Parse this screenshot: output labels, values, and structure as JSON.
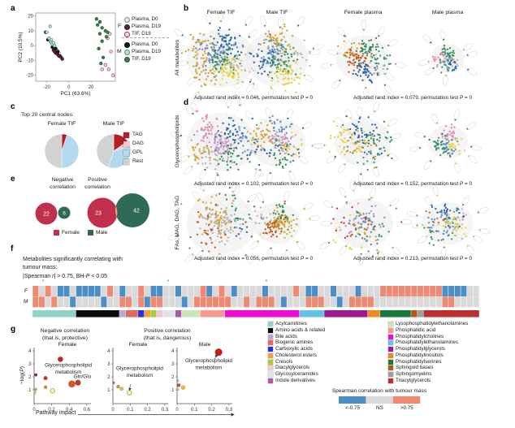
{
  "panel_a": {
    "letter": "a",
    "chart_data": {
      "type": "scatter",
      "xlabel": "PC1 (63.6%)",
      "ylabel": "PC2 (10.5%)",
      "xlim": [
        -30,
        42
      ],
      "ylim": [
        -24,
        22
      ],
      "xticks": [
        -20,
        0,
        20
      ],
      "yticks": [
        20,
        10,
        0,
        -10,
        -20
      ],
      "series": [
        {
          "name": "F Plasma, D0",
          "fill": "#e8e8e8",
          "stroke": "#8a8a8a",
          "points": [
            [
              -13,
              -2
            ],
            [
              -11,
              -3
            ],
            [
              -12,
              -4
            ],
            [
              -9,
              -5
            ],
            [
              -14,
              -1
            ]
          ]
        },
        {
          "name": "F Plasma, D19",
          "fill": "#5a2430",
          "stroke": "#3d1620",
          "points": [
            [
              -14,
              -3
            ],
            [
              -13,
              -4
            ],
            [
              -12,
              -5
            ],
            [
              -11,
              -5
            ],
            [
              -10,
              -6
            ],
            [
              -9,
              -7
            ],
            [
              -8,
              -7
            ],
            [
              -7,
              -8
            ],
            [
              -6,
              -9
            ]
          ]
        },
        {
          "name": "F TIF, D19",
          "fill": "#f3dbe0",
          "stroke": "#9e3a52",
          "points": [
            [
              35,
              5
            ],
            [
              37,
              8
            ],
            [
              38,
              -4
            ],
            [
              33,
              -13
            ],
            [
              30,
              -16
            ],
            [
              36,
              -16
            ],
            [
              40,
              -20
            ]
          ]
        },
        {
          "name": "M Plasma, D0",
          "fill": "#1a1a1a",
          "stroke": "#000000",
          "points": [
            [
              -21,
              9
            ],
            [
              -19,
              4
            ],
            [
              -15,
              -1
            ],
            [
              -12,
              -2
            ],
            [
              -10,
              -4
            ]
          ]
        },
        {
          "name": "M Plasma, D19",
          "fill": "#bfe0d8",
          "stroke": "#4e8f7f",
          "points": [
            [
              -17,
              13
            ],
            [
              -20,
              9
            ],
            [
              -18,
              5
            ],
            [
              -17,
              3
            ],
            [
              -16,
              2
            ],
            [
              -15,
              1
            ],
            [
              -14,
              2
            ],
            [
              -16,
              4
            ],
            [
              -13,
              0
            ]
          ]
        },
        {
          "name": "M TIF, D19",
          "fill": "#3c7d4e",
          "stroke": "#275c36",
          "points": [
            [
              25,
              18
            ],
            [
              28,
              16
            ],
            [
              26,
              14
            ],
            [
              30,
              12
            ],
            [
              33,
              10
            ],
            [
              28,
              8
            ],
            [
              35,
              9
            ],
            [
              34,
              6
            ],
            [
              30,
              3
            ],
            [
              27,
              -2
            ],
            [
              31,
              -8
            ],
            [
              29,
              -12
            ]
          ]
        }
      ],
      "legend": {
        "group_labels": [
          "F",
          "M"
        ],
        "items": [
          {
            "label": "Plasma, D0",
            "fill": "#e8e8e8",
            "stroke": "#8a8a8a"
          },
          {
            "label": "Plasma, D19",
            "fill": "#5a2430",
            "stroke": "#3d1620"
          },
          {
            "label": "TIF, D19",
            "fill": "#f3dbe0",
            "stroke": "#9e3a52"
          },
          {
            "label": "Plasma, D0",
            "fill": "#1a1a1a",
            "stroke": "#000000"
          },
          {
            "label": "Plasma, D19",
            "fill": "#bfe0d8",
            "stroke": "#4e8f7f"
          },
          {
            "label": "TIF, D19",
            "fill": "#3c7d4e",
            "stroke": "#275c36"
          }
        ]
      }
    }
  },
  "networks": {
    "letter_b": "b",
    "letter_d": "d",
    "columns": [
      "Female TIF",
      "Male TIF",
      "Female plasma",
      "Male plasma"
    ],
    "rows": [
      {
        "row_label": "All metabolites",
        "captions": [
          "Adjusted rand index = 0.046, permutation test P = 0",
          "Adjusted rand index = 0.079, permutation test P = 0"
        ]
      },
      {
        "row_label": "Glycerophospholipids",
        "captions": [
          "Adjusted rand index = 0.102, permutation test P = 0",
          "Adjusted rand index = 0.152, permutation test P = 0"
        ]
      },
      {
        "row_label": "FAs, MAG, DAG, TAG",
        "captions": [
          "Adjusted rand index = 0.056, permutation test P = 0",
          "Adjusted rand index = 0.213, permutation test P = 0"
        ]
      }
    ]
  },
  "panel_c": {
    "letter": "c",
    "title": "Top 20 central nodes:",
    "chart_data": [
      {
        "type": "pie",
        "title": "Female TIF",
        "labels": [
          "TAG",
          "DAG",
          "GPL",
          "Rest"
        ],
        "values": [
          1,
          0,
          9,
          10
        ]
      },
      {
        "type": "pie",
        "title": "Male TIF",
        "labels": [
          "TAG",
          "DAG",
          "GPL",
          "Rest"
        ],
        "values": [
          3,
          1,
          7,
          9
        ]
      }
    ],
    "legend": [
      {
        "label": "TAG",
        "color": "#b02025"
      },
      {
        "label": "DAG",
        "color": "#f5c3d2"
      },
      {
        "label": "GPL",
        "color": "#b3d9ed"
      },
      {
        "label": "Rest",
        "color": "#d2d2d2"
      }
    ]
  },
  "panel_e": {
    "letter": "e",
    "neg_title": [
      "Negative",
      "correlation"
    ],
    "pos_title": [
      "Positive",
      "correlation"
    ],
    "chart_data": {
      "type": "venn",
      "negative": {
        "female": 22,
        "male": 6
      },
      "positive": {
        "female": 23,
        "overlap": 2,
        "male": 42
      }
    },
    "legend": [
      {
        "label": "Female",
        "color": "#c0304d"
      },
      {
        "label": "Male",
        "color": "#2e6b57"
      }
    ]
  },
  "panel_f": {
    "letter": "f",
    "title_lines": [
      "Metabolites significantly correlating with",
      "tumour mass:",
      "|Spearman r| > 0.75, BH-P < 0.05"
    ],
    "row_labels": [
      "F",
      "M"
    ],
    "chart_data": {
      "type": "heatmap",
      "value_key": {
        "B": "< -0.75",
        "G": "NS",
        "R": "> 0.75"
      },
      "rows": {
        "F": "RGRGBBGBBBBGRGBGGRGBBGGBGGGRBGRGBGGGGBGGGGRGBBGGBGGGBGGGRRRRRRRRRRBBBBGG",
        "M": "RRGRGGBGGGGBGGRRGRBRRGGGBGRRRRRRGGRGRRRGBGGGRRRGGBGRRRRGGGGGGGGGGGRRGGGG"
      },
      "class_strip": [
        {
          "class": "Acylcarnitines",
          "color": "#8fd4c4",
          "count": 7
        },
        {
          "class": "Amino acids & related",
          "color": "#0a0a0a",
          "count": 7
        },
        {
          "class": "Bile acids",
          "color": "#b7abd6",
          "count": 1
        },
        {
          "class": "Biogenic amines",
          "color": "#e4685c",
          "count": 2
        },
        {
          "class": "Carboxylic acids",
          "color": "#2431dd",
          "count": 1
        },
        {
          "class": "Cholesterol esters",
          "color": "#f0a12f",
          "count": 1
        },
        {
          "class": "Cresols",
          "color": "#a6ce39",
          "count": 1
        },
        {
          "class": "Diacylglycerols",
          "color": "#f6c6d8",
          "count": 1
        },
        {
          "class": "Glycosylceramides",
          "color": "#e3e3e3",
          "count": 2
        },
        {
          "class": "Indole derivatives",
          "color": "#a85aad",
          "count": 1
        },
        {
          "class": "Lysophosphatidylethanolamines",
          "color": "#c9e7b4",
          "count": 3
        },
        {
          "class": "Phosphatidic acid",
          "color": "#f49a92",
          "count": 4
        },
        {
          "class": "Phosphatidylcholines",
          "color": "#ee0bd4",
          "count": 12
        },
        {
          "class": "Phosphatidylethanolamines",
          "color": "#62c3ea",
          "count": 4
        },
        {
          "class": "Phosphatidylglycerols",
          "color": "#9c1a94",
          "count": 7
        },
        {
          "class": "Phosphatidylinositols",
          "color": "#ec8c1e",
          "count": 2
        },
        {
          "class": "Phosphatidylserines",
          "color": "#177a3a",
          "count": 5
        },
        {
          "class": "Sphingoid bases",
          "color": "#b05c12",
          "count": 1
        },
        {
          "class": "Sphingomyelins",
          "color": "#9e9e9e",
          "count": 1
        },
        {
          "class": "Triacylglycerols",
          "color": "#bb2f30",
          "count": 9
        }
      ]
    },
    "class_legend": [
      {
        "label": "Acylcarnitines",
        "color": "#8fd4c4"
      },
      {
        "label": "Amino acids & related",
        "color": "#0a0a0a"
      },
      {
        "label": "Bile acids",
        "color": "#b7abd6"
      },
      {
        "label": "Biogenic amines",
        "color": "#e4685c"
      },
      {
        "label": "Carboxylic acids",
        "color": "#2431dd"
      },
      {
        "label": "Cholesterol esters",
        "color": "#f0a12f"
      },
      {
        "label": "Cresols",
        "color": "#a6ce39"
      },
      {
        "label": "Diacylglycerols",
        "color": "#f6c6d8"
      },
      {
        "label": "Glycosylceramides",
        "color": "#e3e3e3"
      },
      {
        "label": "Indole derivatives",
        "color": "#a85aad"
      },
      {
        "label": "Lysophosphatidylethanolamines",
        "color": "#c9e7b4"
      },
      {
        "label": "Phosphatidic acid",
        "color": "#f49a92"
      },
      {
        "label": "Phosphatidylcholines",
        "color": "#ee0bd4"
      },
      {
        "label": "Phosphatidylethanolamines",
        "color": "#62c3ea"
      },
      {
        "label": "Phosphatidylglycerols",
        "color": "#9c1a94"
      },
      {
        "label": "Phosphatidylinositols",
        "color": "#ec8c1e"
      },
      {
        "label": "Phosphatidylserines",
        "color": "#177a3a"
      },
      {
        "label": "Sphingoid bases",
        "color": "#b05c12"
      },
      {
        "label": "Sphingomyelins",
        "color": "#9e9e9e"
      },
      {
        "label": "Triacylglycerols",
        "color": "#bb2f30"
      }
    ],
    "corr_legend": {
      "title": "Spearman correlation with tumour mass",
      "items": [
        {
          "label": "<-0.75",
          "color": "#4b8fc6"
        },
        {
          "label": "NS",
          "color": "#d9d9d9"
        },
        {
          "label": ">0.75",
          "color": "#ed8a71"
        }
      ]
    }
  },
  "panel_g": {
    "letter": "g",
    "neg_title_lines": [
      "Negative correlation",
      "(that is, protective)"
    ],
    "pos_title_lines": [
      "Positive correlation",
      "(that is, dangerous)"
    ],
    "ylabel": "−log(P)",
    "xlabel": "Pathway impact",
    "yticks": [
      4,
      3,
      2,
      1
    ],
    "chart_data": [
      {
        "type": "scatter",
        "subtitle": "Female",
        "xticks": [
          0,
          0.2,
          0.4,
          0.6
        ],
        "xmax": 0.65,
        "points": [
          {
            "x": 0.3,
            "y": 3.35,
            "r": 3.2,
            "color": "#c22718"
          },
          {
            "x": 0.02,
            "y": 2.15,
            "r": 1.8,
            "color": "#8f2a16"
          },
          {
            "x": 0.13,
            "y": 1.9,
            "r": 2.4,
            "color": "#c63c1c"
          },
          {
            "x": 0.43,
            "y": 1.45,
            "r": 4.2,
            "color": "#d2592a"
          },
          {
            "x": 0.5,
            "y": 1.55,
            "r": 3.4,
            "color": "#c83a1e"
          },
          {
            "x": 0.13,
            "y": 1.2,
            "r": 2.0,
            "color": "#db8a38"
          },
          {
            "x": 0.02,
            "y": 1.05,
            "r": 1.5,
            "color": "#de9d42"
          },
          {
            "x": 0.21,
            "y": 0.92,
            "r": 2.8,
            "color": "#b8b22e",
            "open": true
          },
          {
            "x": 0.01,
            "y": 0.86,
            "r": 1.4,
            "color": "#d4c85e"
          },
          {
            "x": 0.01,
            "y": 0.72,
            "r": 1.2,
            "color": "#c9c9c9"
          }
        ],
        "annotations": [
          {
            "lines": [
              "Glycerophospholipid",
              "metabolism"
            ],
            "x": 0.39,
            "y": 2.78
          },
          {
            "lines": [
              "Gln/Glu"
            ],
            "x": 0.55,
            "y": 1.92
          }
        ]
      },
      {
        "type": "scatter",
        "subtitle": "Female",
        "xticks": [
          0,
          0.1,
          0.2,
          0.3
        ],
        "xmax": 0.32,
        "points": [
          {
            "x": 0.004,
            "y": 1.55,
            "r": 1.4,
            "color": "#bf5a36"
          },
          {
            "x": 0.03,
            "y": 1.25,
            "r": 2.0,
            "color": "#d88f3c"
          },
          {
            "x": 0.05,
            "y": 1.08,
            "r": 2.4,
            "color": "#d9c24e"
          },
          {
            "x": 0.095,
            "y": 0.78,
            "r": 2.8,
            "color": "#b0b52e",
            "open": true
          }
        ],
        "annotations": [
          {
            "lines": [
              "Glycerophospholipid",
              "metabolism"
            ],
            "x": 0.155,
            "y": 2.52,
            "arrow": {
              "x1": 0.1,
              "y1": 1.42,
              "x2": 0.097,
              "y2": 0.95
            }
          }
        ]
      },
      {
        "type": "scatter",
        "subtitle": "Male",
        "xticks": [
          0,
          0.1,
          0.2,
          0.3
        ],
        "xmax": 0.32,
        "points": [
          {
            "x": 0.24,
            "y": 3.9,
            "r": 4.4,
            "color": "#cb1f10"
          },
          {
            "x": 0.004,
            "y": 1.7,
            "r": 1.3,
            "color": "#a9a9a9"
          },
          {
            "x": 0.01,
            "y": 1.35,
            "r": 2.0,
            "color": "#cc4f28"
          },
          {
            "x": 0.035,
            "y": 1.18,
            "r": 2.6,
            "color": "#d8c44a"
          },
          {
            "x": 0.004,
            "y": 1.03,
            "r": 1.5,
            "color": "#d2c254"
          }
        ],
        "annotations": [
          {
            "lines": [
              "Glycerophospholipid",
              "metabolism"
            ],
            "x": 0.183,
            "y": 3.12,
            "arrow": {
              "x1": 0.215,
              "y1": 3.33,
              "x2": 0.231,
              "y2": 3.72
            }
          }
        ]
      }
    ]
  }
}
